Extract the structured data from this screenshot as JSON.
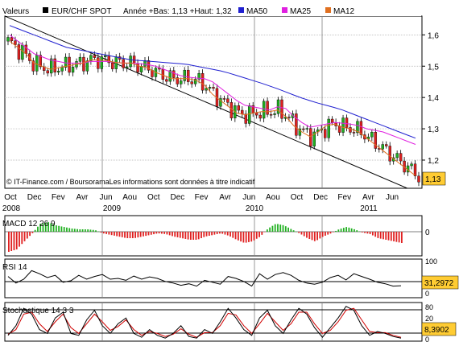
{
  "header": {
    "label": "Valeurs",
    "instrument": "EUR/CHF SPOT",
    "range_text": "Année +Bas: 1,13 +Haut: 1,32"
  },
  "legend": [
    {
      "label": "MA50",
      "color": "#2020d0"
    },
    {
      "label": "MA25",
      "color": "#e020e0"
    },
    {
      "label": "MA12",
      "color": "#e07020"
    }
  ],
  "credit": "© IT-Finance.com / BoursoramaLes informations sont données à titre indicatif",
  "price_tag": "1,13",
  "colors": {
    "up": "#20b020",
    "down": "#e02020",
    "line": "#000000",
    "signal": "#d00000",
    "grid": "#b0b0b0",
    "vline": "#808080",
    "tag_bg": "#ffcc33"
  },
  "x_axis": {
    "months": [
      "Oct",
      "Dec",
      "Fev",
      "Avr",
      "Jun",
      "Aou",
      "Oct",
      "Dec",
      "Fev",
      "Avr",
      "Jun",
      "Aou",
      "Oct",
      "Dec",
      "Fev",
      "Avr",
      "Jun"
    ],
    "years": [
      "2008",
      "2009",
      "2010",
      "2011"
    ]
  },
  "panels": {
    "macd": {
      "title": "MACD 12 26 9",
      "zero": "0"
    },
    "rsi": {
      "title": "RSI 14",
      "value": "31,2972",
      "levels": [
        "100",
        "50",
        "0"
      ]
    },
    "stoch": {
      "title": "Stochastique 14 3 3",
      "value": "8,3902",
      "levels": [
        "80",
        "20",
        "0"
      ]
    }
  },
  "chart_data": [
    {
      "type": "candlestick",
      "title": "EUR/CHF SPOT",
      "y_ticks": [
        "1,6",
        "1,5",
        "1,4",
        "1,3",
        "1,2"
      ],
      "y_tick_values": [
        1.6,
        1.5,
        1.4,
        1.3,
        1.2
      ],
      "ylim": [
        1.11,
        1.66
      ],
      "last": 1.13,
      "year_low": 1.13,
      "year_high": 1.32,
      "moving_averages": [
        {
          "name": "MA50",
          "values": [
            1.63,
            1.62,
            1.61,
            1.6,
            1.59,
            1.58,
            1.57,
            1.56,
            1.555,
            1.55,
            1.545,
            1.54,
            1.535,
            1.53,
            1.525,
            1.52,
            1.518,
            1.516,
            1.514,
            1.512,
            1.51,
            1.508,
            1.505,
            1.5,
            1.495,
            1.49,
            1.485,
            1.478,
            1.47,
            1.462,
            1.454,
            1.446,
            1.437,
            1.428,
            1.418,
            1.408,
            1.398,
            1.39,
            1.382,
            1.375,
            1.368,
            1.36,
            1.35,
            1.34,
            1.33,
            1.32,
            1.31,
            1.3,
            1.29,
            1.28,
            1.27
          ]
        },
        {
          "name": "MA25",
          "values": [
            1.6,
            1.58,
            1.56,
            1.54,
            1.53,
            1.52,
            1.515,
            1.51,
            1.51,
            1.51,
            1.515,
            1.515,
            1.515,
            1.512,
            1.51,
            1.51,
            1.508,
            1.505,
            1.5,
            1.49,
            1.48,
            1.47,
            1.465,
            1.462,
            1.46,
            1.45,
            1.43,
            1.41,
            1.39,
            1.375,
            1.37,
            1.365,
            1.36,
            1.37,
            1.365,
            1.34,
            1.32,
            1.305,
            1.31,
            1.315,
            1.32,
            1.318,
            1.315,
            1.31,
            1.3,
            1.295,
            1.29,
            1.28,
            1.27,
            1.26,
            1.25
          ]
        },
        {
          "name": "MA12",
          "values": [
            1.58,
            1.56,
            1.54,
            1.51,
            1.5,
            1.49,
            1.495,
            1.5,
            1.505,
            1.51,
            1.52,
            1.52,
            1.518,
            1.512,
            1.51,
            1.51,
            1.5,
            1.495,
            1.48,
            1.47,
            1.46,
            1.46,
            1.46,
            1.455,
            1.44,
            1.41,
            1.39,
            1.37,
            1.35,
            1.345,
            1.35,
            1.355,
            1.355,
            1.36,
            1.34,
            1.31,
            1.29,
            1.275,
            1.29,
            1.31,
            1.315,
            1.305,
            1.3,
            1.29,
            1.27,
            1.25,
            1.23,
            1.21,
            1.19,
            1.17,
            1.15
          ]
        }
      ],
      "trendline": {
        "from": 1.66,
        "to": 1.09
      }
    },
    {
      "type": "bar",
      "title": "MACD 12 26 9",
      "ylim": [
        -0.03,
        0.02
      ],
      "values": [
        -0.025,
        -0.022,
        -0.012,
        -0.002,
        0.01,
        0.012,
        0.008,
        0.006,
        0.004,
        0.003,
        0.003,
        0.002,
        -0.002,
        -0.004,
        -0.006,
        -0.008,
        -0.008,
        -0.006,
        -0.004,
        -0.002,
        -0.003,
        -0.006,
        -0.008,
        -0.01,
        -0.01,
        -0.006,
        -0.004,
        -0.002,
        -0.005,
        -0.01,
        -0.014,
        -0.012,
        -0.006,
        0.004,
        0.01,
        0.008,
        0.003,
        -0.002,
        -0.008,
        -0.012,
        -0.006,
        -0.002,
        0.003,
        0.006,
        0.003,
        -0.001,
        -0.003,
        -0.008,
        -0.01,
        -0.012,
        -0.014
      ]
    },
    {
      "type": "line",
      "title": "RSI 14",
      "ylim": [
        0,
        100
      ],
      "series": [
        {
          "values": [
            55,
            38,
            48,
            70,
            62,
            52,
            58,
            40,
            44,
            58,
            48,
            55,
            60,
            48,
            50,
            45,
            56,
            48,
            54,
            50,
            42,
            38,
            32,
            36,
            30,
            45,
            40,
            35,
            55,
            50,
            42,
            30,
            62,
            48,
            60,
            65,
            58,
            45,
            38,
            35,
            40,
            52,
            58,
            46,
            62,
            55,
            48,
            40,
            36,
            30,
            31
          ]
        }
      ]
    },
    {
      "type": "line",
      "title": "Stochastique 14 3 3",
      "ylim": [
        0,
        100
      ],
      "series": [
        {
          "values": [
            15,
            40,
            85,
            70,
            30,
            20,
            60,
            75,
            20,
            15,
            55,
            80,
            40,
            20,
            45,
            60,
            20,
            10,
            30,
            15,
            8,
            20,
            40,
            12,
            8,
            30,
            20,
            50,
            85,
            60,
            30,
            15,
            60,
            80,
            40,
            20,
            55,
            85,
            70,
            35,
            10,
            35,
            60,
            90,
            80,
            40,
            15,
            25,
            20,
            12,
            8
          ]
        },
        {
          "values": [
            18,
            30,
            70,
            75,
            45,
            25,
            50,
            70,
            35,
            20,
            45,
            70,
            50,
            28,
            38,
            55,
            30,
            15,
            25,
            20,
            12,
            18,
            32,
            18,
            10,
            22,
            22,
            40,
            72,
            68,
            40,
            20,
            45,
            72,
            50,
            28,
            45,
            75,
            75,
            45,
            20,
            28,
            50,
            80,
            85,
            55,
            25,
            22,
            22,
            15,
            10
          ]
        }
      ]
    }
  ]
}
